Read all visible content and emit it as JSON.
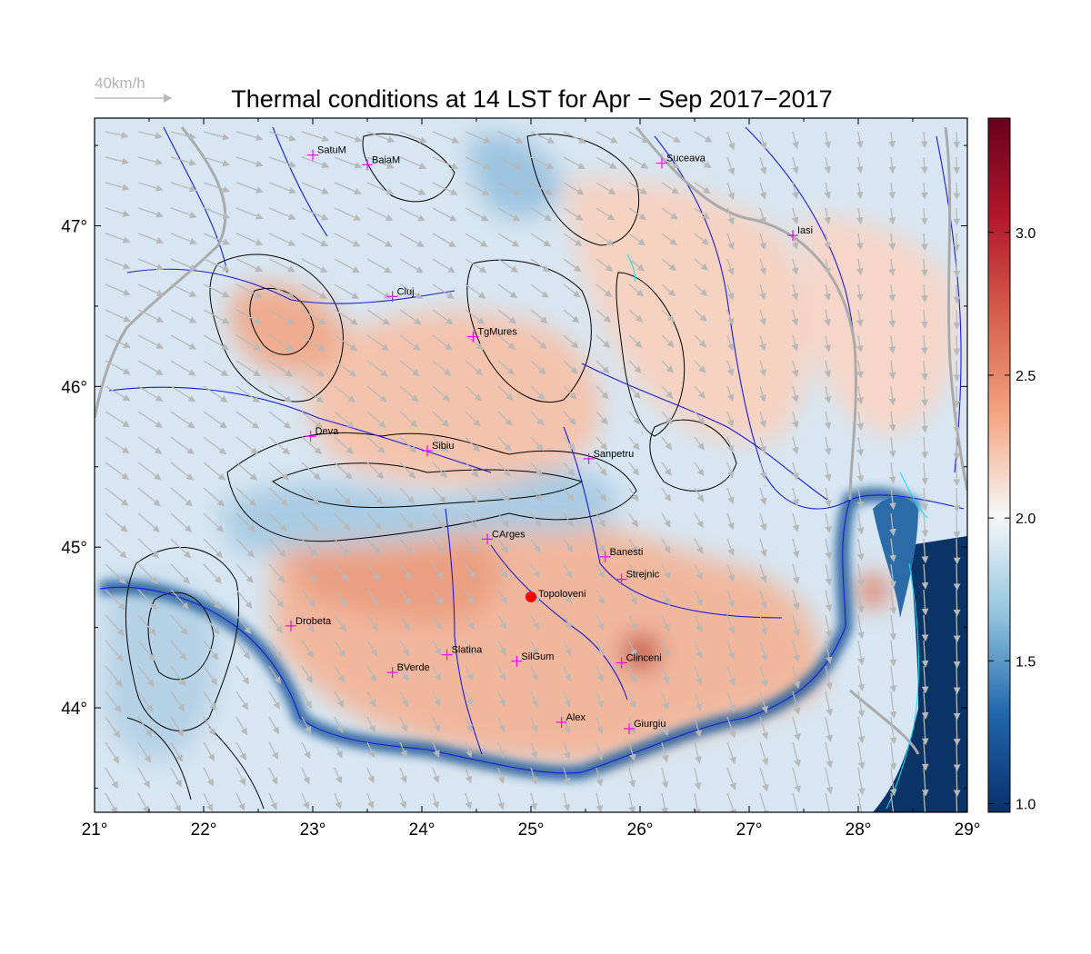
{
  "title": "Thermal conditions at 14 LST for Apr − Sep  2017−2017",
  "wind_scale": {
    "label": "40km/h"
  },
  "axes": {
    "x_ticks": [
      "21°",
      "22°",
      "23°",
      "24°",
      "25°",
      "26°",
      "27°",
      "28°",
      "29°"
    ],
    "y_ticks": [
      "47°",
      "46°",
      "45°",
      "44°"
    ],
    "lon_range": [
      21,
      29
    ],
    "lat_range": [
      43.35,
      47.67
    ]
  },
  "colorbar": {
    "ticks": [
      "3.0",
      "2.5",
      "2.0",
      "1.5",
      "1.0"
    ],
    "range": [
      0.97,
      3.4
    ],
    "colors": [
      "#08306b",
      "#2166ac",
      "#92c5de",
      "#f7f7f7",
      "#f4a582",
      "#d6604d",
      "#b2182b",
      "#67001f"
    ]
  },
  "cities": [
    {
      "name": "SatuM",
      "lon": 23.0,
      "lat": 47.44
    },
    {
      "name": "BaiaM",
      "lon": 23.5,
      "lat": 47.38
    },
    {
      "name": "Suceava",
      "lon": 26.2,
      "lat": 47.39
    },
    {
      "name": "Iasi",
      "lon": 27.4,
      "lat": 46.94
    },
    {
      "name": "Cluj",
      "lon": 23.73,
      "lat": 46.56
    },
    {
      "name": "TgMures",
      "lon": 24.47,
      "lat": 46.31
    },
    {
      "name": "Deva",
      "lon": 22.98,
      "lat": 45.69
    },
    {
      "name": "Sibiu",
      "lon": 24.05,
      "lat": 45.6
    },
    {
      "name": "Sanpetru",
      "lon": 25.53,
      "lat": 45.55
    },
    {
      "name": "CArges",
      "lon": 24.6,
      "lat": 45.05
    },
    {
      "name": "Banesti",
      "lon": 25.68,
      "lat": 44.94
    },
    {
      "name": "Strejnic",
      "lon": 25.83,
      "lat": 44.8
    },
    {
      "name": "Drobeta",
      "lon": 22.8,
      "lat": 44.51
    },
    {
      "name": "Slatina",
      "lon": 24.23,
      "lat": 44.33
    },
    {
      "name": "SilGum",
      "lon": 24.87,
      "lat": 44.29
    },
    {
      "name": "Clinceni",
      "lon": 25.83,
      "lat": 44.28
    },
    {
      "name": "BVerde",
      "lon": 23.73,
      "lat": 44.22
    },
    {
      "name": "Alex",
      "lon": 25.28,
      "lat": 43.91
    },
    {
      "name": "Giurgiu",
      "lon": 25.9,
      "lat": 43.87
    }
  ],
  "highlight_station": {
    "name": "Topoloveni",
    "lon": 25.0,
    "lat": 44.69,
    "color": "#ff0000"
  },
  "colors": {
    "rivers": "#1c1cd6",
    "borders": "#aaaaaa",
    "contours": "#000000",
    "wind_arrows": "#b8b8b8",
    "city_marker": "#ff00ff",
    "water_cyan": "#00e5ff"
  }
}
